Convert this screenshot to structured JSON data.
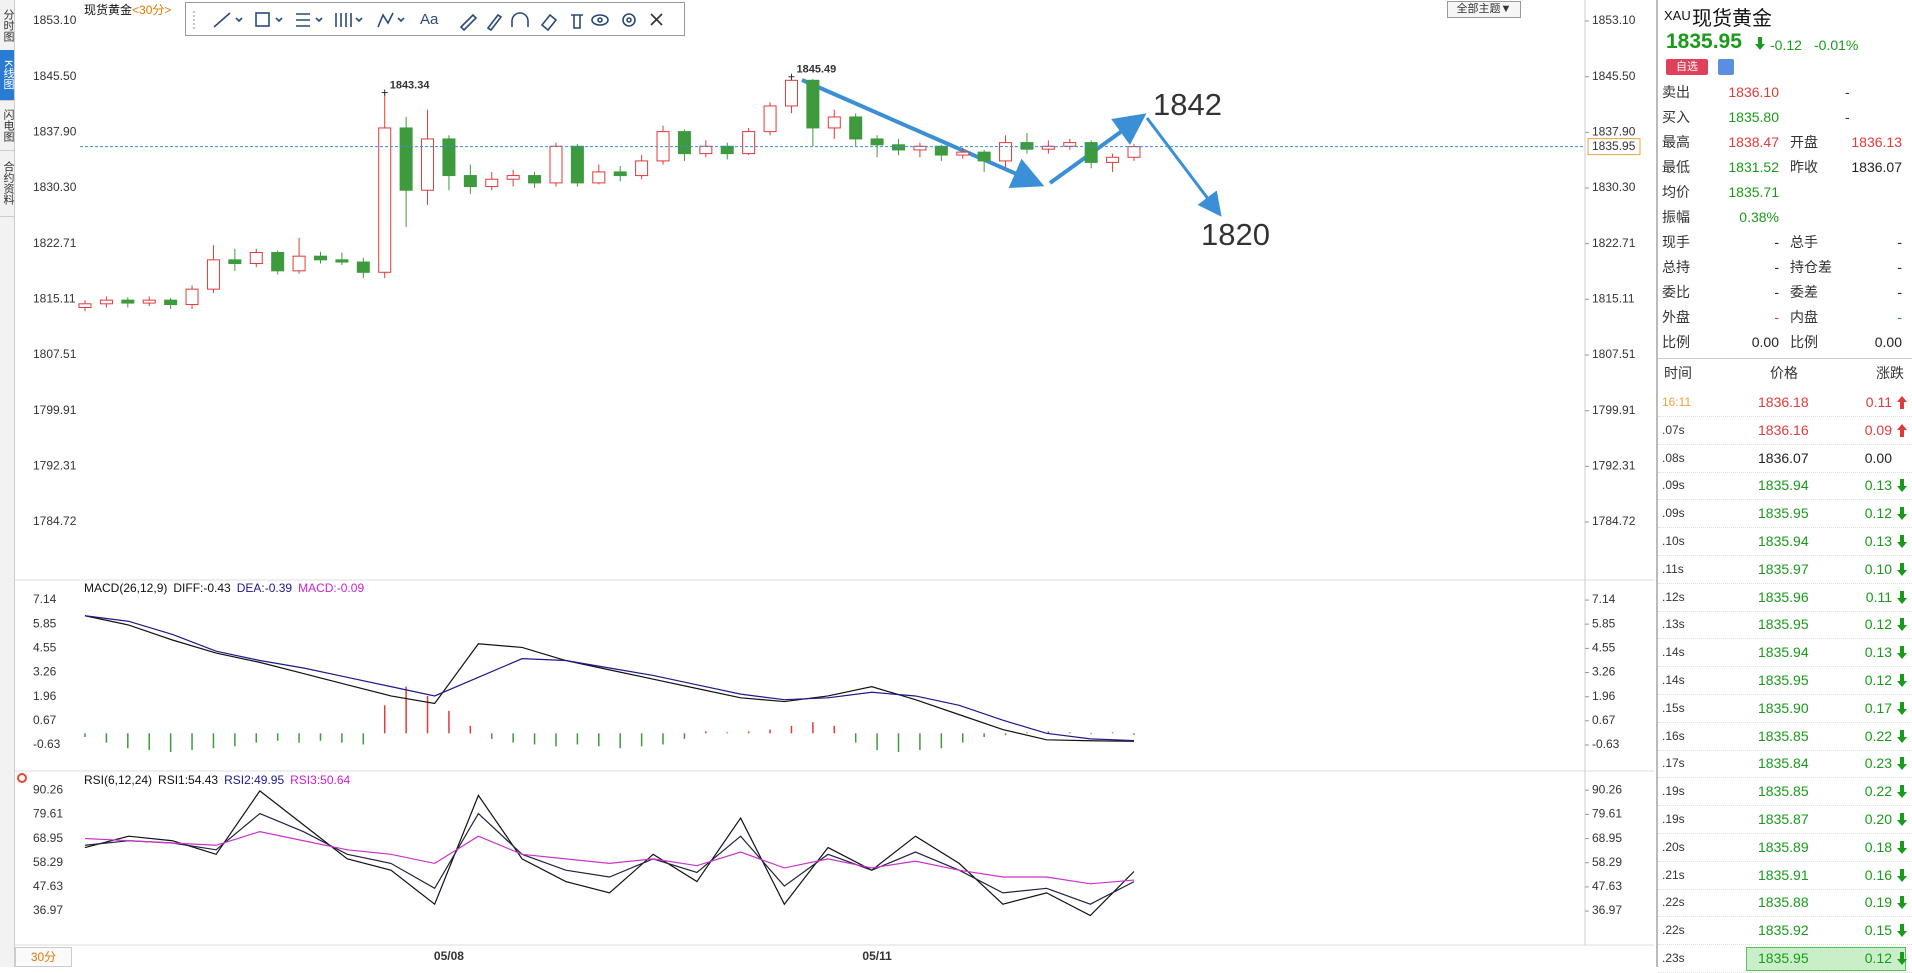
{
  "side_tabs": {
    "items": [
      "分时图",
      "K线图",
      "闪电图",
      "合约资料"
    ],
    "active": 1
  },
  "toolbar": {
    "font_tool": "Aa",
    "theme_button": "全部主题▼"
  },
  "period_button": "30分",
  "chart_data": [
    {
      "type": "candlestick",
      "title": "现货黄金",
      "period": "<30分>",
      "categories": [
        null,
        null,
        null,
        null,
        null,
        null,
        null,
        null,
        null,
        null,
        null,
        null,
        null,
        null,
        null,
        null,
        null,
        "05/08",
        null,
        null,
        null,
        null,
        null,
        null,
        null,
        null,
        null,
        null,
        null,
        null,
        null,
        null,
        null,
        null,
        null,
        null,
        null,
        "05/11",
        null,
        null,
        null,
        null,
        null,
        null,
        null,
        null,
        null,
        null,
        null,
        null
      ],
      "open": [
        1814,
        1814.5,
        1815,
        1814.6,
        1815,
        1814.4,
        1816.5,
        1820.5,
        1820,
        1821.5,
        1819,
        1821,
        1820.5,
        1820.2,
        1818.8,
        1838.5,
        1830,
        1837,
        1832,
        1830.5,
        1831.5,
        1832,
        1831,
        1836,
        1831,
        1832.5,
        1832,
        1834,
        1838,
        1835,
        1836,
        1835,
        1838,
        1841.5,
        1845,
        1838.5,
        1840,
        1837,
        1836.2,
        1835.5,
        1836,
        1834.8,
        1835.2,
        1834,
        1836.5,
        1835.6,
        1836,
        1836.5,
        1833.8,
        1834.5
      ],
      "high": [
        1815,
        1815.5,
        1815.4,
        1815.5,
        1815.3,
        1817,
        1822.5,
        1822,
        1822,
        1821.8,
        1823.5,
        1821.6,
        1821.5,
        1820.8,
        1843.34,
        1840,
        1841,
        1837.5,
        1833.5,
        1832.5,
        1832.8,
        1832.5,
        1836.5,
        1836.3,
        1833.5,
        1833.3,
        1834.8,
        1838.8,
        1838.3,
        1836.8,
        1836.5,
        1838.5,
        1842,
        1845.49,
        1845.2,
        1841,
        1840.5,
        1837.5,
        1837,
        1836.5,
        1836.2,
        1835.8,
        1835.5,
        1837.5,
        1837.8,
        1836.8,
        1837,
        1836.8,
        1835,
        1836.3
      ],
      "low": [
        1813.5,
        1814,
        1814,
        1814.2,
        1813.8,
        1813.8,
        1816,
        1819,
        1819.5,
        1818.5,
        1818.6,
        1820,
        1819.8,
        1818,
        1818,
        1825,
        1828,
        1830,
        1829.5,
        1830,
        1830.5,
        1830.3,
        1830.5,
        1830.5,
        1830.8,
        1831.2,
        1831.5,
        1833.5,
        1834,
        1834.5,
        1834.2,
        1834.8,
        1837.5,
        1840.5,
        1836,
        1837,
        1836,
        1834.5,
        1834.8,
        1834.5,
        1834,
        1834.3,
        1832.5,
        1833,
        1835,
        1835,
        1835.5,
        1833,
        1832.5,
        1834
      ],
      "close": [
        1814.5,
        1815,
        1814.6,
        1815,
        1814.4,
        1816.5,
        1820.5,
        1820,
        1821.5,
        1819,
        1821,
        1820.5,
        1820.2,
        1818.8,
        1838.5,
        1830,
        1837,
        1832,
        1830.5,
        1831.5,
        1832,
        1831,
        1836,
        1831,
        1832.5,
        1832,
        1834,
        1838,
        1835,
        1836,
        1835,
        1838,
        1841.5,
        1845,
        1838.5,
        1840,
        1837,
        1836.2,
        1835.5,
        1836,
        1834.8,
        1835.2,
        1834,
        1836.5,
        1835.6,
        1836,
        1836.5,
        1833.8,
        1834.5,
        1835.95
      ],
      "up_color": "#e03a3a",
      "down_color": "#3d9a3d",
      "ylim": [
        1778.17,
        1854.87
      ],
      "yticks": [
        {
          "value": 1853.1,
          "label": "1853.10"
        },
        {
          "value": 1845.5,
          "label": "1845.50"
        },
        {
          "value": 1837.9,
          "label": "1837.90"
        },
        {
          "value": 1830.3,
          "label": "1830.30"
        },
        1822.71,
        1815.11,
        1807.51,
        1799.91,
        1792.31,
        1784.72
      ],
      "current_price": 1835.95,
      "current_price_color": "#3a8fd6",
      "labeled_highs": [
        14,
        33
      ],
      "annotations": [
        "1842",
        "1820"
      ],
      "annotation_color": "#3a8fd6"
    },
    {
      "type": "macd",
      "title": "MACD(26,12,9)",
      "legend_labels": [
        "DIFF:-0.43",
        "DEA:-0.39",
        "MACD:-0.09"
      ],
      "legend_colors": [
        "#111111",
        "#1a1a8c",
        "#cc22cc"
      ],
      "series": [
        {
          "color": "#111111",
          "values": [
            6.3,
            5.8,
            5.0,
            4.3,
            3.8,
            3.2,
            2.6,
            2.0,
            1.6,
            4.8,
            4.6,
            3.9,
            3.4,
            2.9,
            2.4,
            1.9,
            1.7,
            2.0,
            2.5,
            1.8,
            1.0,
            0.2,
            -0.35,
            -0.4,
            -0.43
          ]
        },
        {
          "color": "#1a1a8c",
          "values": [
            6.3,
            6.0,
            5.3,
            4.4,
            3.9,
            3.5,
            3.0,
            2.5,
            2.0,
            3.0,
            4.0,
            3.9,
            3.5,
            3.1,
            2.6,
            2.1,
            1.8,
            1.9,
            2.2,
            2.0,
            1.5,
            0.7,
            0.0,
            -0.3,
            -0.39
          ]
        }
      ],
      "bars": {
        "values": [
          -0.2,
          -0.5,
          -0.8,
          -0.9,
          -1.0,
          -0.9,
          -0.8,
          -0.7,
          -0.5,
          -0.4,
          -0.5,
          -0.4,
          -0.5,
          -0.6,
          1.5,
          2.5,
          2.0,
          1.2,
          0.4,
          -0.3,
          -0.5,
          -0.6,
          -0.7,
          -0.6,
          -0.7,
          -0.8,
          -0.7,
          -0.6,
          -0.3,
          0.1,
          0.05,
          0.1,
          0.2,
          0.4,
          0.6,
          0.4,
          -0.5,
          -0.9,
          -1.0,
          -0.9,
          -0.8,
          -0.5,
          -0.2,
          -0.1,
          0.05,
          0.1,
          0.05,
          -0.05,
          0.05,
          -0.09
        ],
        "up_color": "#e03a3a",
        "down_color": "#3d9a3d"
      },
      "ylim": [
        -1.7,
        7.68
      ],
      "yticks": [
        7.14,
        5.85,
        4.55,
        3.26,
        1.96,
        0.67,
        -0.63
      ]
    },
    {
      "type": "rsi",
      "title": "RSI(6,12,24)",
      "legend_labels": [
        "RSI1:54.43",
        "RSI2:49.95",
        "RSI3:50.64"
      ],
      "legend_colors": [
        "#111111",
        "#1a1a8c",
        "#cc22cc"
      ],
      "series": [
        {
          "color": "#111111",
          "values": [
            65,
            70,
            68,
            62,
            90,
            75,
            60,
            55,
            40,
            88,
            60,
            50,
            45,
            62,
            50,
            78,
            40,
            65,
            55,
            70,
            58,
            40,
            45,
            35,
            54.43
          ]
        },
        {
          "color": "#222244",
          "values": [
            66,
            68,
            67,
            64,
            80,
            72,
            62,
            58,
            47,
            80,
            62,
            55,
            52,
            60,
            54,
            70,
            48,
            62,
            55,
            63,
            55,
            45,
            47,
            40,
            49.95
          ]
        },
        {
          "color": "#cc33cc",
          "values": [
            69,
            68,
            67,
            66,
            72,
            68,
            64,
            62,
            58,
            70,
            62,
            60,
            58,
            60,
            57,
            63,
            56,
            60,
            56,
            59,
            55,
            52,
            52,
            49,
            50.64
          ]
        }
      ],
      "ylim": [
        22,
        97
      ],
      "yticks": [
        90.26,
        79.61,
        68.95,
        58.29,
        47.63,
        36.97
      ]
    }
  ],
  "quote": {
    "symbol": "XAU",
    "name": "现货黄金",
    "price": "1835.95",
    "change": "-0.12",
    "change_pct": "-0.01%",
    "color": "#1a9a1a",
    "watch_button": "自选",
    "rows": [
      {
        "label": "卖出",
        "value": "1836.10",
        "value_color": "#e03a3a",
        "extra": "-"
      },
      {
        "label": "买入",
        "value": "1835.80",
        "value_color": "#1a9a1a",
        "extra": "-"
      },
      {
        "label": "最高",
        "value": "1838.47",
        "value_color": "#e03a3a",
        "label2": "开盘",
        "value2": "1836.13",
        "value2_color": "#e03a3a"
      },
      {
        "label": "最低",
        "value": "1831.52",
        "value_color": "#1a9a1a",
        "label2": "昨收",
        "value2": "1836.07",
        "value2_color": "#222222"
      },
      {
        "label": "均价",
        "value": "1835.71",
        "value_color": "#1a9a1a"
      },
      {
        "label": "振幅",
        "value": "0.38%",
        "value_color": "#1a9a1a"
      },
      {
        "label": "现手",
        "value": "-",
        "value_color": "#222222",
        "label2": "总手",
        "value2": "-",
        "value2_color": "#222222"
      },
      {
        "label": "总持",
        "value": "-",
        "value_color": "#222222",
        "label2": "持仓差",
        "value2": "-",
        "value2_color": "#222222"
      },
      {
        "label": "委比",
        "value": "-",
        "value_color": "#222222",
        "label2": "委差",
        "value2": "-",
        "value2_color": "#222222"
      },
      {
        "label": "外盘",
        "value": "-",
        "value_color": "#e03a3a",
        "label2": "内盘",
        "value2": "-",
        "value2_color": "#1a9a1a"
      },
      {
        "label": "比例",
        "value": "0.00",
        "value_color": "#222222",
        "label2": "比例",
        "value2": "0.00",
        "value2_color": "#222222"
      }
    ]
  },
  "ticks": {
    "header": [
      "时间",
      "价格",
      "涨跌"
    ],
    "highlighted_row": 20,
    "rows": [
      {
        "time": "16:11",
        "time_color": "#e8a33d",
        "price": "1836.18",
        "change": "0.11",
        "color": "#e03a3a"
      },
      {
        "time": ".07s",
        "price": "1836.16",
        "change": "0.09",
        "color": "#e03a3a"
      },
      {
        "time": ".08s",
        "price": "1836.07",
        "change": "0.00",
        "color": "#222222"
      },
      {
        "time": ".09s",
        "price": "1835.94",
        "change": "0.13",
        "color": "#1a9a1a"
      },
      {
        "time": ".09s",
        "price": "1835.95",
        "change": "0.12",
        "color": "#1a9a1a"
      },
      {
        "time": ".10s",
        "price": "1835.94",
        "change": "0.13",
        "color": "#1a9a1a"
      },
      {
        "time": ".11s",
        "price": "1835.97",
        "change": "0.10",
        "color": "#1a9a1a"
      },
      {
        "time": ".12s",
        "price": "1835.96",
        "change": "0.11",
        "color": "#1a9a1a"
      },
      {
        "time": ".13s",
        "price": "1835.95",
        "change": "0.12",
        "color": "#1a9a1a"
      },
      {
        "time": ".14s",
        "price": "1835.94",
        "change": "0.13",
        "color": "#1a9a1a"
      },
      {
        "time": ".14s",
        "price": "1835.95",
        "change": "0.12",
        "color": "#1a9a1a"
      },
      {
        "time": ".15s",
        "price": "1835.90",
        "change": "0.17",
        "color": "#1a9a1a"
      },
      {
        "time": ".16s",
        "price": "1835.85",
        "change": "0.22",
        "color": "#1a9a1a"
      },
      {
        "time": ".17s",
        "price": "1835.84",
        "change": "0.23",
        "color": "#1a9a1a"
      },
      {
        "time": ".19s",
        "price": "1835.85",
        "change": "0.22",
        "color": "#1a9a1a"
      },
      {
        "time": ".19s",
        "price": "1835.87",
        "change": "0.20",
        "color": "#1a9a1a"
      },
      {
        "time": ".20s",
        "price": "1835.89",
        "change": "0.18",
        "color": "#1a9a1a"
      },
      {
        "time": ".21s",
        "price": "1835.91",
        "change": "0.16",
        "color": "#1a9a1a"
      },
      {
        "time": ".22s",
        "price": "1835.88",
        "change": "0.19",
        "color": "#1a9a1a"
      },
      {
        "time": ".22s",
        "price": "1835.92",
        "change": "0.15",
        "color": "#1a9a1a"
      },
      {
        "time": ".23s",
        "price": "1835.95",
        "change": "0.12",
        "color": "#1a9a1a"
      }
    ]
  }
}
